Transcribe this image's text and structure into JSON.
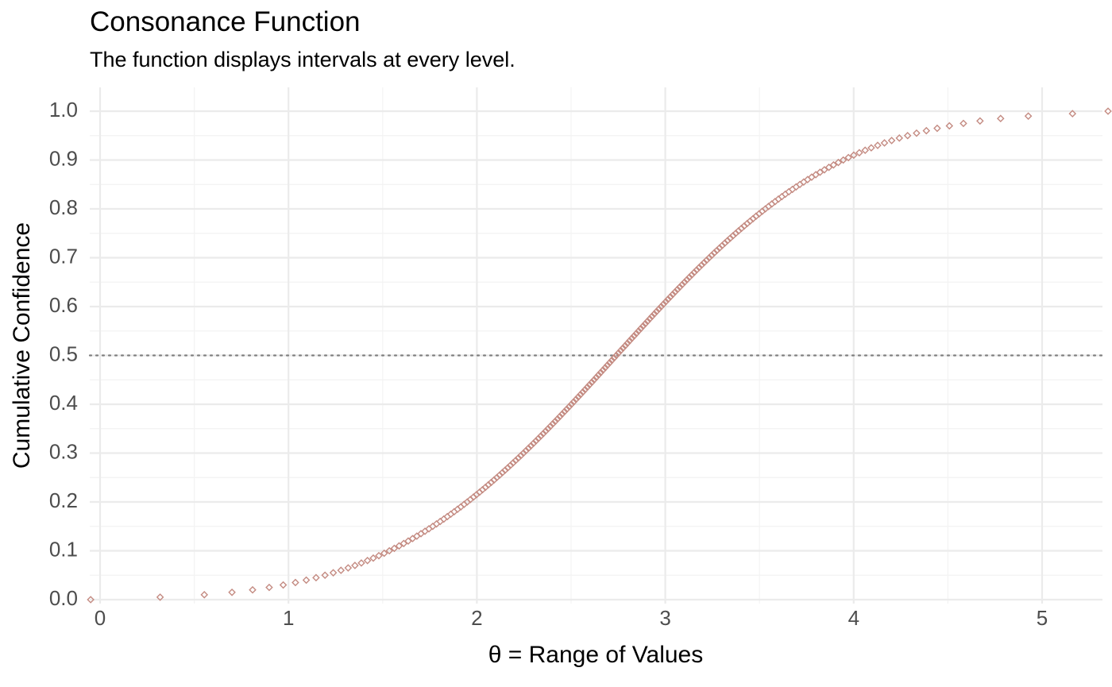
{
  "chart_data": {
    "type": "scatter",
    "title": "Consonance Function",
    "subtitle": "The function displays intervals at every level.",
    "xlabel": "θ =  Range of Values",
    "ylabel": "Cumulative Confidence",
    "xlim": [
      0,
      5.3
    ],
    "ylim": [
      0,
      1
    ],
    "x_ticks": [
      0,
      1,
      2,
      3,
      4,
      5
    ],
    "x_tick_labels": [
      "0",
      "1",
      "2",
      "3",
      "4",
      "5"
    ],
    "y_ticks": [
      0,
      0.1,
      0.2,
      0.3,
      0.4,
      0.5,
      0.6,
      0.7,
      0.8,
      0.9,
      1.0
    ],
    "y_tick_labels": [
      "0.0",
      "0.1",
      "0.2",
      "0.3",
      "0.4",
      "0.5",
      "0.6",
      "0.7",
      "0.8",
      "0.9",
      "1.0"
    ],
    "reference_line": {
      "y": 0.5,
      "style": "dotted",
      "color": "#7f7f7f"
    },
    "grid": true,
    "marker": "open-diamond",
    "color": "#c48b82",
    "distribution": {
      "kind": "normal-cdf",
      "mean": 2.74,
      "sd": 0.94,
      "level_step": 0.005
    }
  }
}
